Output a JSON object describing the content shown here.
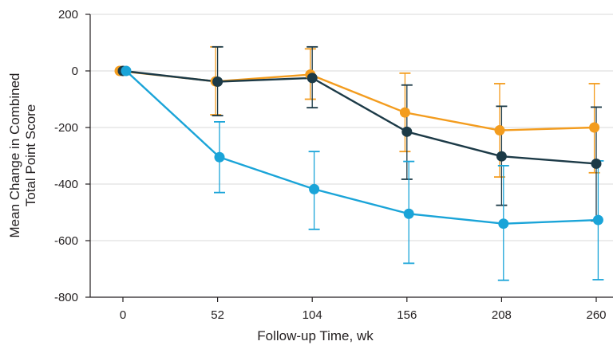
{
  "chart_data": {
    "type": "line",
    "title": "",
    "xlabel": "Follow-up Time, wk",
    "ylabel": [
      "Mean Change in Combined",
      "Total Point Score"
    ],
    "x": [
      0,
      52,
      104,
      156,
      208,
      260
    ],
    "xlim": [
      0,
      260
    ],
    "ylim": [
      -800,
      200
    ],
    "yticks": [
      -800,
      -600,
      -400,
      -200,
      0,
      200
    ],
    "xticks": [
      0,
      52,
      104,
      156,
      208,
      260
    ],
    "grid": "horizontal",
    "legend": "none",
    "series": [
      {
        "color": "#f39c1e",
        "values": [
          0,
          -37,
          -13,
          -147,
          -210,
          -200
        ],
        "ci_low": [
          0,
          -155,
          -100,
          -285,
          -375,
          -360
        ],
        "ci_high": [
          0,
          85,
          78,
          -8,
          -45,
          -45
        ]
      },
      {
        "color": "#1c3a47",
        "values": [
          0,
          -38,
          -25,
          -215,
          -302,
          -328
        ],
        "ci_low": [
          0,
          -158,
          -130,
          -383,
          -475,
          -530
        ],
        "ci_high": [
          0,
          85,
          85,
          -50,
          -125,
          -128
        ]
      },
      {
        "color": "#1aa4d8",
        "values": [
          0,
          -305,
          -418,
          -505,
          -540,
          -527
        ],
        "ci_low": [
          0,
          -430,
          -560,
          -680,
          -740,
          -738
        ],
        "ci_high": [
          0,
          -180,
          -285,
          -320,
          -335,
          -318
        ]
      }
    ]
  }
}
